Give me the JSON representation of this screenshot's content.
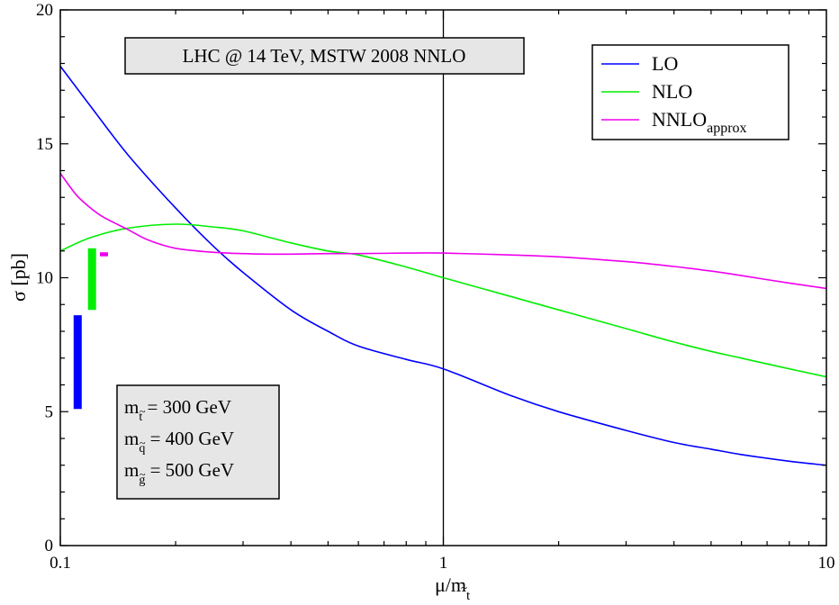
{
  "chart_data": {
    "type": "line",
    "title": "LHC @ 14 TeV, MSTW 2008 NNLO",
    "xlabel": {
      "main": "μ/m",
      "sub": "t",
      "sub_accent": "~"
    },
    "ylabel": "σ [pb]",
    "xscale": "log",
    "xlim": [
      0.1,
      10
    ],
    "ylim": [
      0,
      20
    ],
    "x_ticks": [
      {
        "value": 0.1,
        "label": "0.1"
      },
      {
        "value": 1,
        "label": "1"
      },
      {
        "value": 10,
        "label": "10"
      }
    ],
    "y_ticks": [
      {
        "value": 0,
        "label": "0"
      },
      {
        "value": 5,
        "label": "5"
      },
      {
        "value": 10,
        "label": "10"
      },
      {
        "value": 15,
        "label": "15"
      },
      {
        "value": 20,
        "label": "20"
      }
    ],
    "vertical_reference_line": 1,
    "series": [
      {
        "name": "LO",
        "legend": {
          "main": "LO",
          "sub": ""
        },
        "color": "#0000ff",
        "x": [
          0.1,
          0.12,
          0.15,
          0.2,
          0.25,
          0.3,
          0.4,
          0.5,
          0.6,
          0.8,
          1.0,
          1.5,
          2.0,
          3.0,
          4.0,
          5.0,
          6.0,
          8.0,
          10.0
        ],
        "y": [
          17.9,
          16.4,
          14.6,
          12.6,
          11.2,
          10.2,
          8.8,
          8.0,
          7.45,
          6.95,
          6.6,
          5.6,
          5.0,
          4.3,
          3.85,
          3.6,
          3.4,
          3.15,
          3.0
        ]
      },
      {
        "name": "NLO",
        "legend": {
          "main": "NLO",
          "sub": ""
        },
        "color": "#00ee00",
        "x": [
          0.1,
          0.12,
          0.15,
          0.2,
          0.25,
          0.3,
          0.4,
          0.5,
          0.6,
          0.8,
          1.0,
          1.5,
          2.0,
          3.0,
          4.0,
          5.0,
          6.0,
          8.0,
          10.0
        ],
        "y": [
          11.0,
          11.5,
          11.85,
          12.0,
          11.9,
          11.75,
          11.3,
          11.0,
          10.85,
          10.4,
          10.0,
          9.3,
          8.8,
          8.1,
          7.6,
          7.25,
          7.0,
          6.6,
          6.3
        ]
      },
      {
        "name": "NNLOapprox",
        "legend": {
          "main": "NNLO",
          "sub": "approx"
        },
        "color": "#ee00ee",
        "x": [
          0.1,
          0.11,
          0.12,
          0.13,
          0.15,
          0.17,
          0.2,
          0.25,
          0.3,
          0.35,
          0.4,
          0.5,
          0.6,
          0.8,
          1.0,
          1.5,
          2.0,
          3.0,
          4.0,
          5.0,
          6.0,
          8.0,
          10.0
        ],
        "y": [
          13.9,
          13.1,
          12.6,
          12.25,
          11.8,
          11.4,
          11.1,
          10.95,
          10.9,
          10.88,
          10.88,
          10.9,
          10.9,
          10.92,
          10.92,
          10.85,
          10.78,
          10.6,
          10.42,
          10.25,
          10.08,
          9.8,
          9.6
        ]
      }
    ],
    "uncertainty_bars": [
      {
        "series": "LO",
        "x": 0.111,
        "ymin": 5.1,
        "ymax": 8.6,
        "color": "#0000ff"
      },
      {
        "series": "NLO",
        "x": 0.121,
        "ymin": 8.8,
        "ymax": 11.1,
        "color": "#00ee00"
      },
      {
        "series": "NNLOapprox",
        "x": 0.13,
        "ymin": 10.8,
        "ymax": 10.95,
        "color": "#ee00ee"
      }
    ],
    "mass_box": [
      {
        "sym": "m",
        "sub": "t",
        "text": " = 300 GeV"
      },
      {
        "sym": "m",
        "sub": "q",
        "text": " = 400 GeV"
      },
      {
        "sym": "m",
        "sub": "g",
        "text": " = 500 GeV"
      }
    ],
    "sub_accent": "~",
    "grid": false,
    "legend_position": "top-right"
  }
}
